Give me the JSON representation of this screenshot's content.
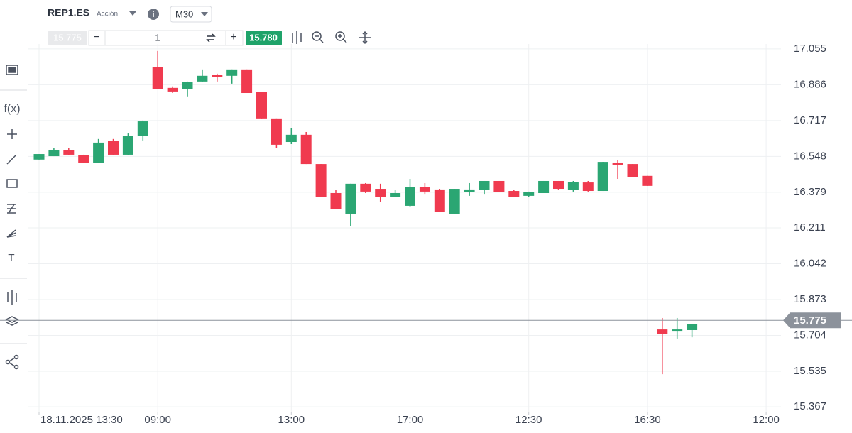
{
  "header": {
    "symbol": "REP1.ES",
    "instrument_type": "Acción",
    "info": "i",
    "timeframe": "M30"
  },
  "trade_bar": {
    "sell_price": "15.775",
    "minus": "−",
    "quantity": "1",
    "plus": "+",
    "buy_price": "15.780"
  },
  "sidebar": {
    "indicators": "f(x)",
    "text_tool": "T"
  },
  "chart_data": {
    "type": "candlestick",
    "categories": [
      "18.11.2025 13:30",
      null,
      null,
      null,
      null,
      null,
      null,
      null,
      "09:00",
      null,
      null,
      null,
      null,
      null,
      null,
      null,
      null,
      "13:00",
      null,
      null,
      null,
      null,
      null,
      null,
      null,
      "17:00",
      null,
      null,
      null,
      null,
      null,
      null,
      null,
      "12:30",
      null,
      null,
      null,
      null,
      null,
      null,
      null,
      "16:30",
      null,
      null,
      null,
      null,
      null,
      null,
      null,
      "12:00"
    ],
    "open": [
      16.533,
      16.549,
      16.579,
      16.553,
      16.519,
      16.62,
      16.556,
      16.646,
      16.968,
      16.871,
      16.864,
      16.901,
      16.931,
      16.928,
      16.958,
      16.851,
      16.727,
      16.616,
      16.65,
      16.512,
      16.375,
      16.278,
      16.419,
      16.395,
      16.358,
      16.315,
      16.402,
      16.392,
      16.278,
      16.379,
      16.389,
      16.432,
      16.385,
      16.362,
      16.375,
      16.432,
      16.389,
      16.425,
      16.385,
      16.519,
      16.512,
      16.456,
      15.732,
      15.722,
      15.729,
      null,
      null,
      null,
      null,
      null
    ],
    "high": [
      16.559,
      16.589,
      16.586,
      16.556,
      16.63,
      16.63,
      16.656,
      16.717,
      17.045,
      16.878,
      16.901,
      16.958,
      16.938,
      16.958,
      16.958,
      16.851,
      16.727,
      16.683,
      16.663,
      16.512,
      16.389,
      16.419,
      16.422,
      16.419,
      16.389,
      16.442,
      16.422,
      16.395,
      16.395,
      16.422,
      16.432,
      16.432,
      16.389,
      16.382,
      16.432,
      16.432,
      16.432,
      16.432,
      16.522,
      16.529,
      16.512,
      16.456,
      15.786,
      15.786,
      15.759,
      null,
      null,
      null,
      null,
      null
    ],
    "low": [
      16.533,
      16.549,
      16.553,
      16.519,
      16.519,
      16.556,
      16.553,
      16.623,
      16.864,
      16.847,
      16.831,
      16.898,
      16.901,
      16.891,
      16.847,
      16.727,
      16.586,
      16.606,
      16.512,
      16.358,
      16.301,
      16.218,
      16.375,
      16.335,
      16.355,
      16.308,
      16.368,
      16.285,
      16.278,
      16.362,
      16.368,
      16.379,
      16.355,
      16.355,
      16.375,
      16.392,
      16.382,
      16.382,
      16.385,
      16.442,
      16.452,
      16.409,
      15.521,
      15.689,
      15.695,
      null,
      null,
      null,
      null,
      null
    ],
    "close": [
      16.559,
      16.576,
      16.556,
      16.519,
      16.613,
      16.556,
      16.646,
      16.713,
      16.864,
      16.854,
      16.898,
      16.928,
      16.921,
      16.958,
      16.847,
      16.727,
      16.603,
      16.65,
      16.512,
      16.358,
      16.301,
      16.419,
      16.382,
      16.355,
      16.375,
      16.402,
      16.382,
      16.285,
      16.395,
      16.392,
      16.432,
      16.379,
      16.358,
      16.379,
      16.432,
      16.395,
      16.428,
      16.385,
      16.522,
      16.509,
      16.452,
      16.409,
      15.712,
      15.732,
      15.759,
      null,
      null,
      null,
      null,
      null
    ],
    "up_color": "#2ba673",
    "down_color": "#f03a4f",
    "ylim": [
      15.344,
      17.078
    ],
    "yticks": [
      15.367,
      15.535,
      15.704,
      15.873,
      16.042,
      16.211,
      16.379,
      16.548,
      16.717,
      16.886,
      17.055
    ],
    "grid": true,
    "current_price": {
      "value": 15.775,
      "label": "15.775"
    }
  }
}
